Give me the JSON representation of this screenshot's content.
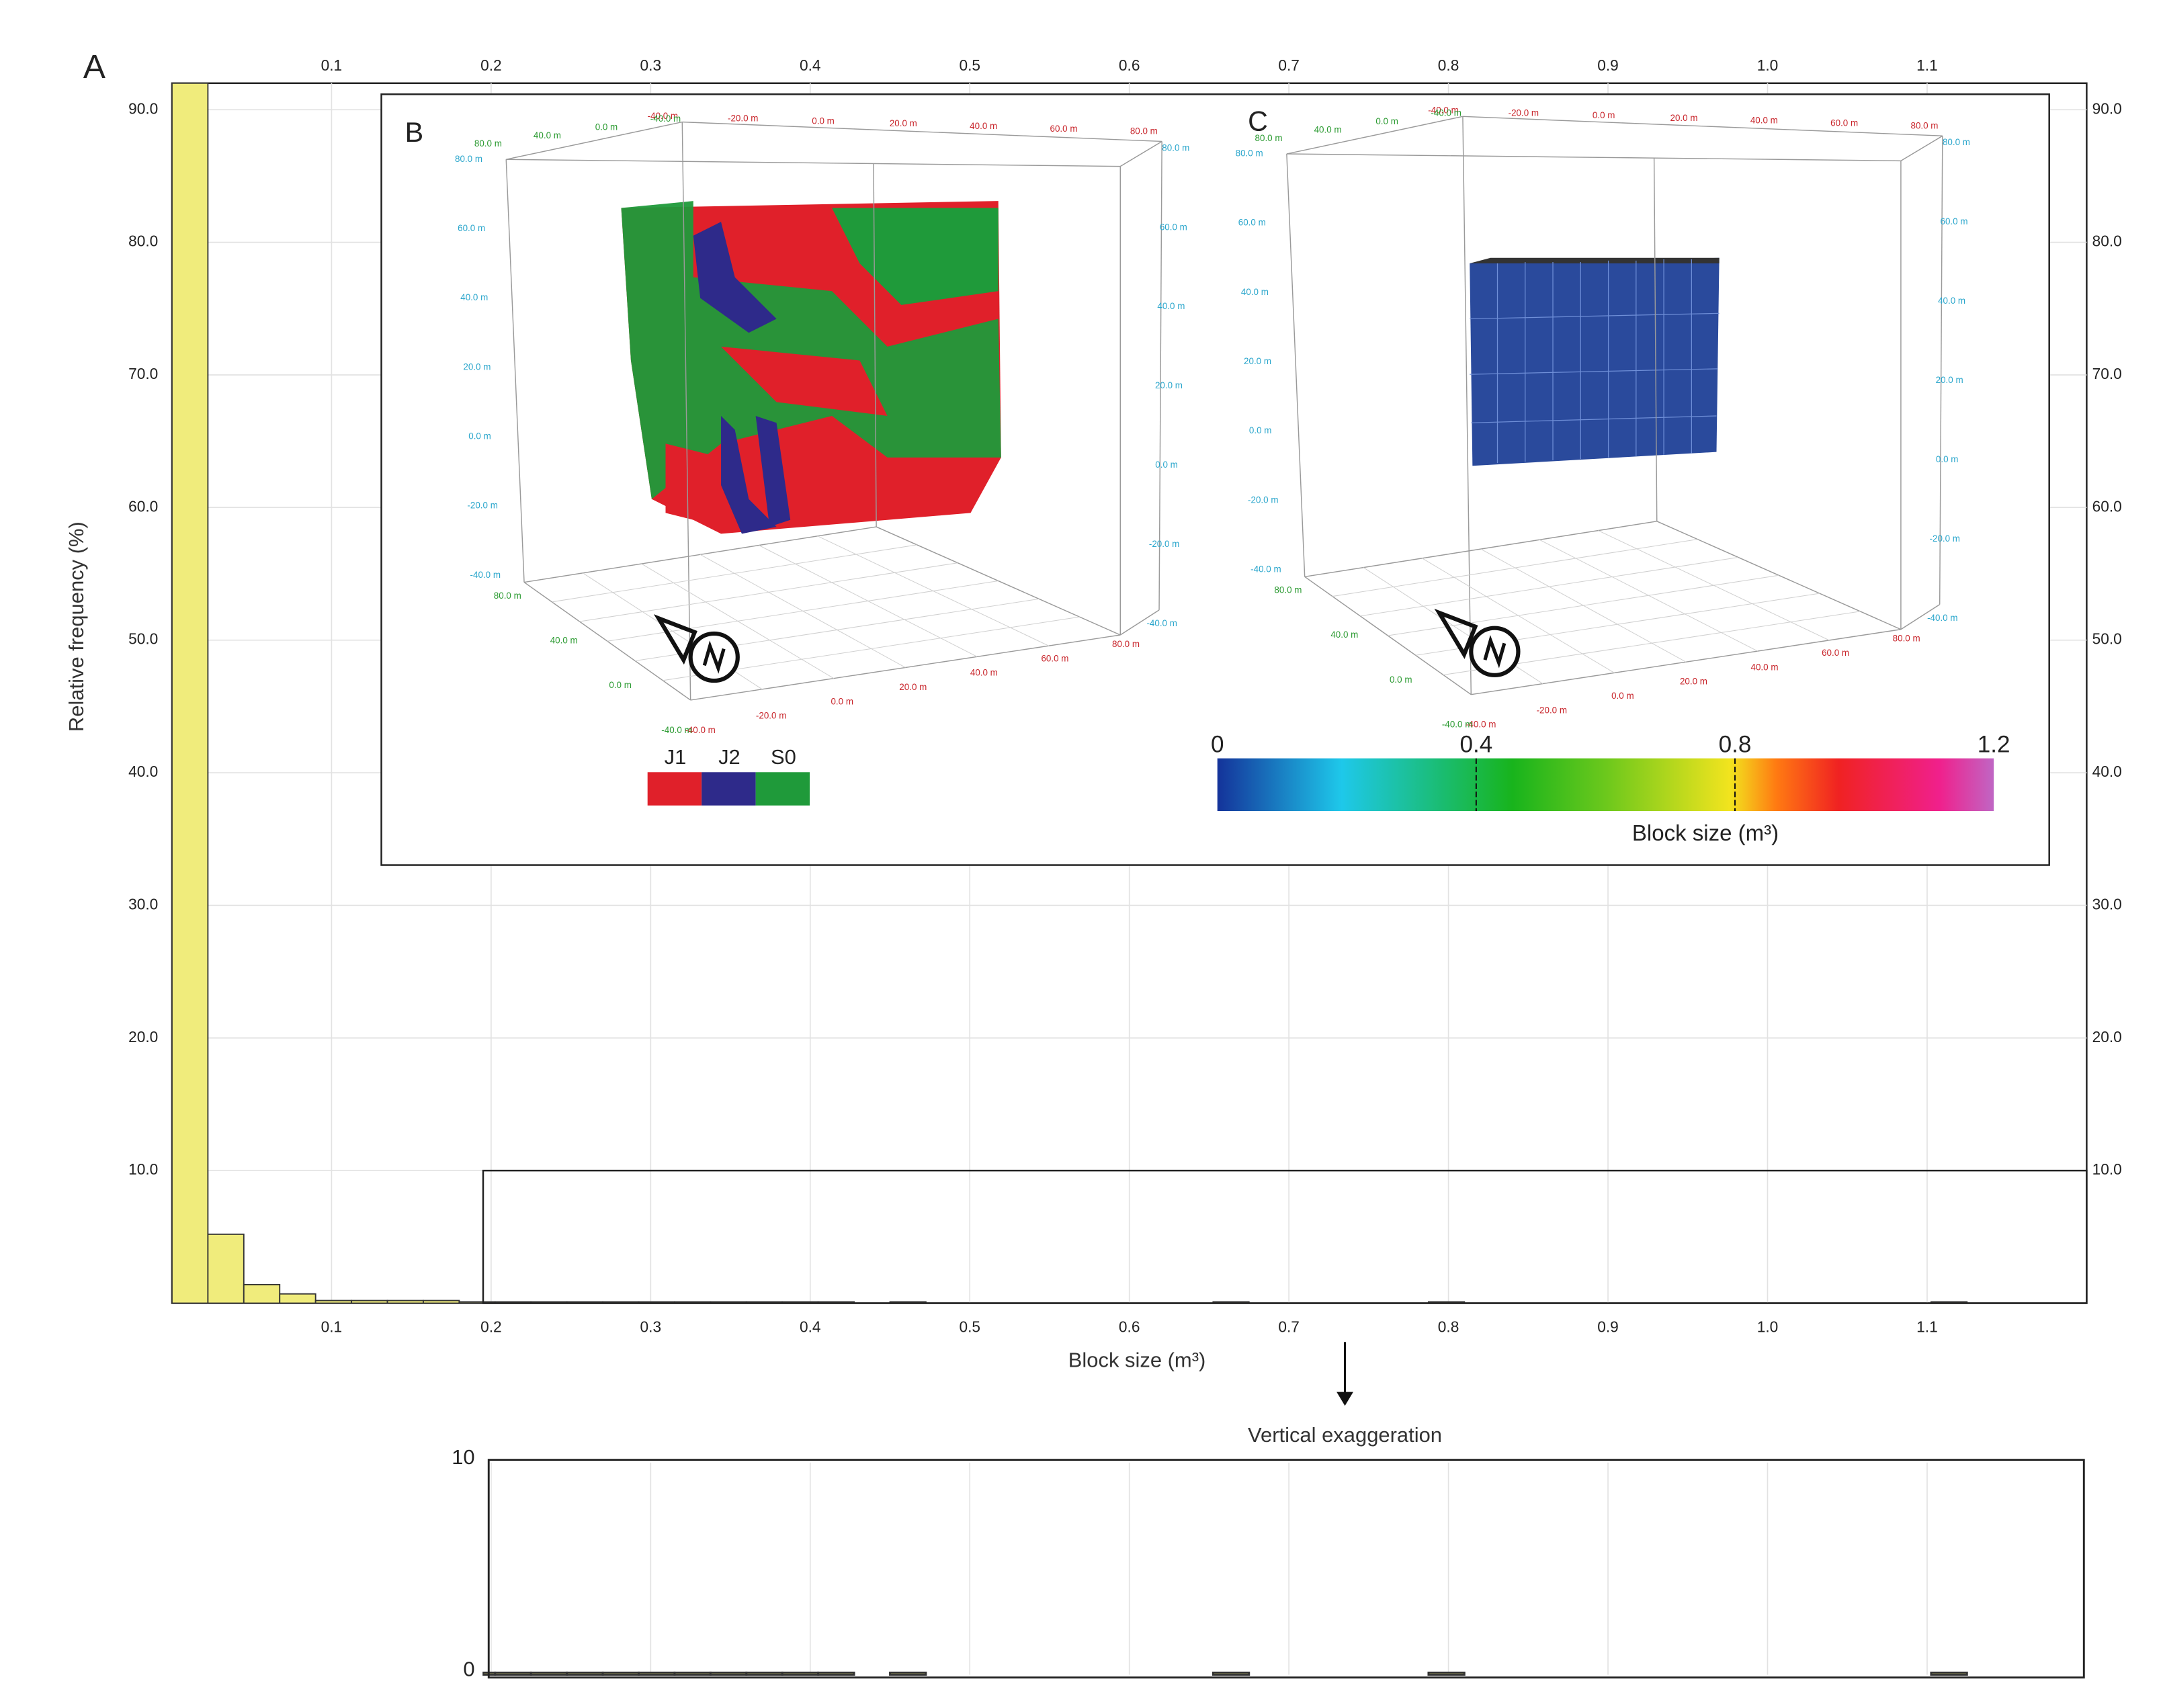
{
  "chart_data": {
    "type": "histogram",
    "panel_label": "A",
    "ylabel": "Relative frequency (%)",
    "xlabel": "Block size (m³)",
    "bins": [
      0,
      0.0225,
      0.045,
      0.0675,
      0.09,
      0.1125,
      0.135,
      0.1575,
      0.18,
      0.2025,
      0.225,
      0.2475,
      0.27,
      0.2925,
      0.315,
      0.3375,
      0.36,
      0.3825,
      0.405,
      0.4275,
      0.45,
      0.4725,
      0.495,
      0.5175,
      0.54,
      0.5625,
      0.585,
      0.6075,
      0.63,
      0.6525,
      0.675,
      0.6975,
      0.72,
      0.7425,
      0.765,
      0.7875,
      0.81,
      0.8325,
      0.855,
      0.8775,
      0.9,
      0.9225,
      0.945,
      0.9675,
      0.99,
      1.0125,
      1.035,
      1.0575,
      1.08,
      1.1025,
      1.125,
      1.1475,
      1.17
    ],
    "values": [
      92,
      5.2,
      1.4,
      0.7,
      0.2,
      0.2,
      0.2,
      0.2,
      0.1,
      0.1,
      0.1,
      0.1,
      0.1,
      0.1,
      0.1,
      0.1,
      0.1,
      0.1,
      0.1,
      0,
      0.1,
      0,
      0,
      0,
      0,
      0,
      0,
      0,
      0,
      0.1,
      0,
      0,
      0,
      0,
      0,
      0.1,
      0,
      0,
      0,
      0,
      0,
      0,
      0,
      0,
      0,
      0,
      0,
      0,
      0,
      0.1,
      0,
      0
    ],
    "color": "#f0ec7c",
    "xlim": [
      0,
      1.2
    ],
    "ylim": [
      0,
      92
    ],
    "xticks": [
      0.1,
      0.2,
      0.3,
      0.4,
      0.5,
      0.6,
      0.7,
      0.8,
      0.9,
      {
        "value": 1,
        "label": "1.0"
      },
      {
        "value": 1.1,
        "label": "1.1"
      }
    ],
    "yticks": [
      {
        "value": 10,
        "label": "10.0"
      },
      {
        "value": 20,
        "label": "20.0"
      },
      {
        "value": 30,
        "label": "30.0"
      },
      {
        "value": 40,
        "label": "40.0"
      },
      {
        "value": 50,
        "label": "50.0"
      },
      {
        "value": 60,
        "label": "60.0"
      },
      {
        "value": 70,
        "label": "70.0"
      },
      {
        "value": 80,
        "label": "80.0"
      },
      {
        "value": 90,
        "label": "90.0"
      }
    ],
    "grid": true,
    "zoom": {
      "title": "Vertical exaggeration",
      "xlim": [
        0.195,
        1.2
      ],
      "ylim": [
        0,
        10
      ],
      "yticks": [
        0,
        10
      ]
    },
    "insets": [
      {
        "label": "B",
        "red_labels": [
          "-40.0 m",
          "-20.0 m",
          "0.0 m",
          "20.0 m",
          "40.0 m",
          "60.0 m",
          "80.0 m"
        ],
        "green_labels": [
          "-40.0 m",
          "0.0 m",
          "40.0 m",
          "80.0 m"
        ],
        "blue_labels": [
          "-40.0 m",
          "-20.0 m",
          "0.0 m",
          "20.0 m",
          "40.0 m",
          "60.0 m",
          "80.0 m"
        ],
        "legend": [
          {
            "name": "J1",
            "color": "#e0202a"
          },
          {
            "name": "J2",
            "color": "#2e2a8a"
          },
          {
            "name": "S0",
            "color": "#1f9a3a"
          }
        ]
      },
      {
        "label": "C",
        "red_labels": [
          "-40.0 m",
          "-20.0 m",
          "0.0 m",
          "20.0 m",
          "40.0 m",
          "60.0 m",
          "80.0 m"
        ],
        "green_labels": [
          "-40.0 m",
          "0.0 m",
          "40.0 m",
          "80.0 m"
        ],
        "blue_labels": [
          "-40.0 m",
          "-20.0 m",
          "0.0 m",
          "20.0 m",
          "40.0 m",
          "60.0 m",
          "80.0 m"
        ],
        "colorbar": {
          "label": "Block size (m³)",
          "lim": [
            0,
            1.2
          ],
          "ticks": [
            0,
            0.4,
            0.8,
            1.2
          ]
        }
      }
    ]
  }
}
